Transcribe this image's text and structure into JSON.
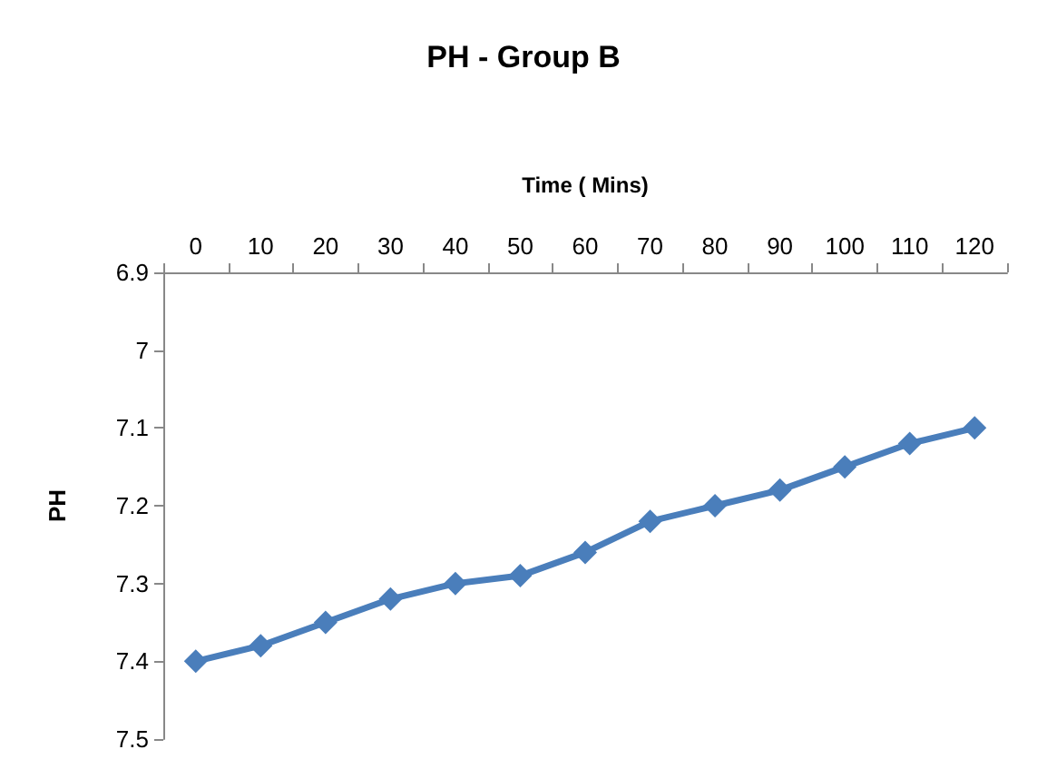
{
  "chart_data": {
    "type": "line",
    "title": "PH - Group B",
    "xlabel": "Time ( Mins)",
    "ylabel": "PH",
    "categories": [
      "0",
      "10",
      "20",
      "30",
      "40",
      "50",
      "60",
      "70",
      "80",
      "90",
      "100",
      "110",
      "120"
    ],
    "series": [
      {
        "color": "#4a7ebb",
        "values": [
          7.4,
          7.38,
          7.35,
          7.32,
          7.3,
          7.29,
          7.26,
          7.22,
          7.2,
          7.18,
          7.15,
          7.12,
          7.1
        ]
      }
    ],
    "ylim": [
      7.5,
      6.9
    ],
    "yticks": [
      6.9,
      7,
      7.1,
      7.2,
      7.3,
      7.4,
      7.5
    ],
    "grid": false,
    "marker": "diamond",
    "line_style": "solid"
  }
}
